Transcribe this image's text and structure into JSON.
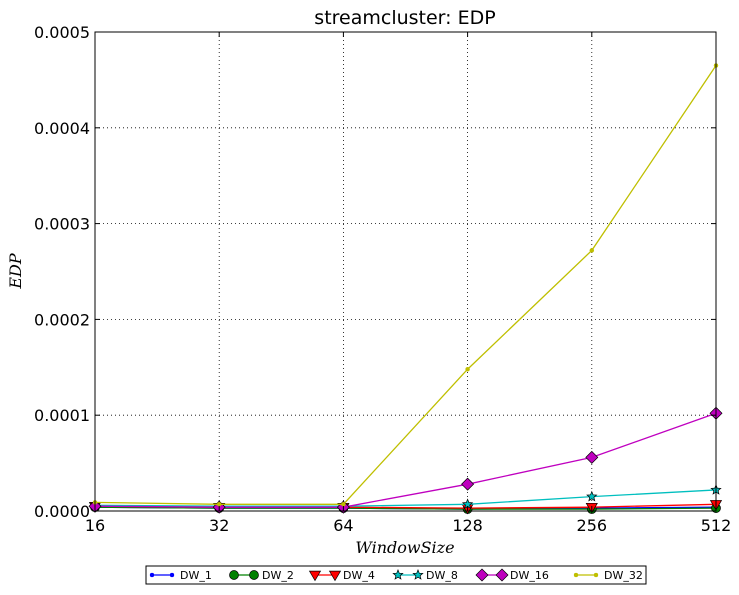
{
  "chart_data": {
    "type": "line",
    "title": "streamcluster: EDP",
    "xlabel": "WindowSize",
    "ylabel": "EDP",
    "x": [
      16,
      32,
      64,
      128,
      256,
      512
    ],
    "x_tick_labels": [
      "16",
      "32",
      "64",
      "128",
      "256",
      "512"
    ],
    "x_scale": "log2",
    "ylim": [
      0,
      0.0005
    ],
    "y_ticks": [
      0,
      0.0001,
      0.0002,
      0.0003,
      0.0004,
      0.0005
    ],
    "y_tick_labels": [
      "0.0000",
      "0.0001",
      "0.0002",
      "0.0003",
      "0.0004",
      "0.0005"
    ],
    "grid": true,
    "legend_position": "bottom-center",
    "series": [
      {
        "name": "DW_1",
        "color": "#0000ff",
        "marker": "point",
        "values": [
          4e-06,
          3e-06,
          3e-06,
          2e-06,
          3e-06,
          4e-06
        ]
      },
      {
        "name": "DW_2",
        "color": "#008000",
        "marker": "circle",
        "values": [
          4e-06,
          3e-06,
          3e-06,
          2e-06,
          2e-06,
          3e-06
        ]
      },
      {
        "name": "DW_4",
        "color": "#ff0000",
        "marker": "triangle",
        "values": [
          5e-06,
          4e-06,
          4e-06,
          3e-06,
          4e-06,
          7e-06
        ]
      },
      {
        "name": "DW_8",
        "color": "#00bfbf",
        "marker": "star",
        "values": [
          6e-06,
          5e-06,
          5e-06,
          7e-06,
          1.5e-05,
          2.2e-05
        ]
      },
      {
        "name": "DW_16",
        "color": "#bf00bf",
        "marker": "diamond",
        "values": [
          5e-06,
          4e-06,
          4e-06,
          2.8e-05,
          5.6e-05,
          0.000102
        ]
      },
      {
        "name": "DW_32",
        "color": "#bfbf00",
        "marker": "point",
        "values": [
          9e-06,
          7e-06,
          7e-06,
          0.000148,
          0.000272,
          0.000465
        ]
      }
    ]
  }
}
